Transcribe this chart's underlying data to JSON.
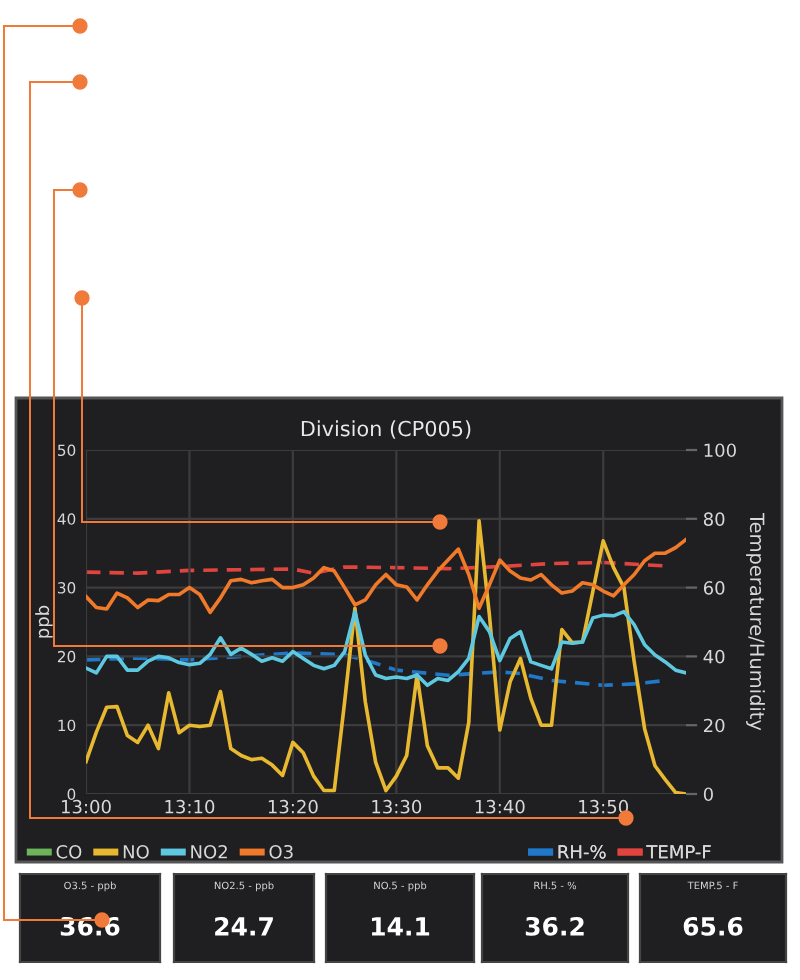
{
  "chart_data": [
    {
      "type": "line",
      "title": "Division (CP005)",
      "ylabel": "ppb",
      "y2label": "Temperature/Humidity",
      "x": [
        13,
        13.0167,
        13.0333,
        13.05,
        13.0667,
        13.0833,
        13.1,
        13.1167,
        13.1333,
        13.15,
        13.1667,
        13.1833,
        13.2,
        13.2167,
        13.2333,
        13.25,
        13.2667,
        13.2833,
        13.3,
        13.3167,
        13.3333,
        13.35,
        13.3667,
        13.3833,
        13.4,
        13.4167,
        13.4333,
        13.45,
        13.4667,
        13.4833,
        13.5,
        13.5167,
        13.5333,
        13.55,
        13.5667,
        13.5833,
        13.6,
        13.6167,
        13.6333,
        13.65,
        13.6667,
        13.6833,
        13.7,
        13.7167,
        13.7333,
        13.75,
        13.7667,
        13.7833,
        13.8,
        13.8167,
        13.8333,
        13.85,
        13.8667,
        13.8833,
        13.9,
        13.9167,
        13.9333,
        13.95,
        13.9667
      ],
      "xlim": [
        13,
        13.9667
      ],
      "xticks": [
        {
          "value": 13,
          "label": "13:00"
        },
        {
          "value": 13.1667,
          "label": "13:10"
        },
        {
          "value": 13.3333,
          "label": "13:20"
        },
        {
          "value": 13.5,
          "label": "13:30"
        },
        {
          "value": 13.6667,
          "label": "13:40"
        },
        {
          "value": 13.8333,
          "label": "13:50"
        }
      ],
      "ylim": [
        0,
        50
      ],
      "yticks": [
        0,
        10,
        20,
        30,
        40,
        50
      ],
      "y2lim": [
        0,
        100
      ],
      "y2ticks": [
        0,
        20,
        40,
        60,
        80,
        100
      ],
      "grid": true,
      "legend": "bottom",
      "marker": "none",
      "series": [
        {
          "name": "CO",
          "color": "#6db35a",
          "values": [
            null,
            null,
            null,
            null,
            null,
            null,
            null,
            null,
            null,
            null,
            null,
            null,
            null,
            null,
            null,
            null,
            null,
            null,
            null,
            null,
            null,
            null,
            null,
            null,
            null,
            null,
            null,
            null,
            null,
            null,
            null,
            null,
            null,
            null,
            null,
            null,
            null,
            null,
            null,
            null,
            null,
            null,
            null,
            null,
            null,
            null,
            null,
            null,
            null,
            null,
            null,
            null,
            null,
            null,
            null,
            null,
            null,
            null,
            null
          ]
        },
        {
          "name": "NO",
          "color": "#e8b830",
          "values": [
            4.7,
            9,
            12.6,
            12.7,
            8.5,
            7.5,
            10,
            6.6,
            14.7,
            8.9,
            10,
            9.8,
            10,
            14.9,
            6.6,
            5.6,
            5,
            5.2,
            4.2,
            2.7,
            7.5,
            6,
            2.6,
            0.5,
            0.5,
            13.4,
            27,
            13.4,
            4.6,
            0.5,
            2.6,
            5.6,
            17.3,
            7,
            3.8,
            3.8,
            2.3,
            10.4,
            39.7,
            26,
            9.3,
            16.3,
            19.7,
            13.9,
            10,
            10,
            23.9,
            22,
            22.1,
            29.5,
            36.8,
            32.9,
            30,
            19.2,
            9.5,
            4.1,
            2.1,
            0.2,
            0
          ]
        },
        {
          "name": "NO2",
          "color": "#5ec8e0",
          "values": [
            18.3,
            17.6,
            20,
            20,
            18,
            18,
            19.3,
            20,
            19.8,
            19.1,
            18.8,
            19,
            20.3,
            22.7,
            20.3,
            21.2,
            20.3,
            19.3,
            19.8,
            19.3,
            20.7,
            19.7,
            18.7,
            18.2,
            18.7,
            20.7,
            26.5,
            20.2,
            17.3,
            16.8,
            17,
            16.8,
            17.3,
            15.8,
            16.8,
            16.5,
            17.8,
            19.7,
            25.8,
            23.6,
            19.4,
            22.6,
            23.6,
            19.2,
            18.7,
            18.2,
            22.1,
            21.9,
            22.1,
            25.6,
            26,
            25.9,
            26.5,
            24.6,
            21.7,
            20.2,
            19.2,
            18,
            17.6
          ]
        },
        {
          "name": "O3",
          "color": "#f07a2a",
          "values": [
            28.7,
            27.1,
            26.9,
            29.2,
            28.5,
            27.1,
            28.2,
            28.1,
            29,
            29,
            30,
            29,
            26.4,
            28.5,
            31,
            31.2,
            30.7,
            31,
            31.2,
            30,
            30,
            30.4,
            31.4,
            32.9,
            32.4,
            30,
            27.5,
            28.2,
            30.4,
            31.9,
            30.4,
            30.1,
            28.2,
            30.4,
            32.4,
            34,
            35.6,
            31.9,
            27,
            30.4,
            34,
            32.4,
            31.4,
            31.1,
            31.9,
            30.4,
            29.2,
            29.5,
            30.7,
            30.4,
            29.5,
            28.8,
            30.4,
            31.9,
            33.9,
            35,
            35,
            35.8,
            37
          ]
        },
        {
          "name": "RH-%",
          "color": "#1f78c8",
          "axis": "y2",
          "line_style": "dashed",
          "x": [
            13,
            13.0833,
            13.1667,
            13.25,
            13.3333,
            13.4167,
            13.4667,
            13.5,
            13.5833,
            13.6667,
            13.7,
            13.75,
            13.8333,
            13.8833,
            13.9333
          ],
          "values": [
            39,
            39.5,
            39,
            40,
            41,
            40.5,
            38,
            36,
            34.5,
            35.5,
            35,
            33,
            31.6,
            32,
            33
          ]
        },
        {
          "name": "TEMP-F",
          "color": "#e0443e",
          "axis": "y2",
          "line_style": "dashed",
          "x": [
            13,
            13.0833,
            13.1667,
            13.25,
            13.3333,
            13.3667,
            13.4167,
            13.5,
            13.5833,
            13.6667,
            13.75,
            13.8333,
            13.9333
          ],
          "values": [
            64.5,
            64.2,
            65,
            65.2,
            65.4,
            64.2,
            66,
            65.8,
            65.5,
            66.1,
            67,
            67.3,
            66.3
          ]
        }
      ]
    },
    {
      "type": "other",
      "title": "O3.5 - ppb",
      "annotations": [
        "36.6"
      ]
    },
    {
      "type": "other",
      "title": "NO2.5 - ppb",
      "annotations": [
        "24.7"
      ]
    },
    {
      "type": "other",
      "title": "NO.5 - ppb",
      "annotations": [
        "14.1"
      ]
    },
    {
      "type": "other",
      "title": "RH.5 - %",
      "annotations": [
        "36.2"
      ]
    },
    {
      "type": "other",
      "title": "TEMP.5 - F",
      "annotations": [
        "65.6"
      ]
    }
  ]
}
